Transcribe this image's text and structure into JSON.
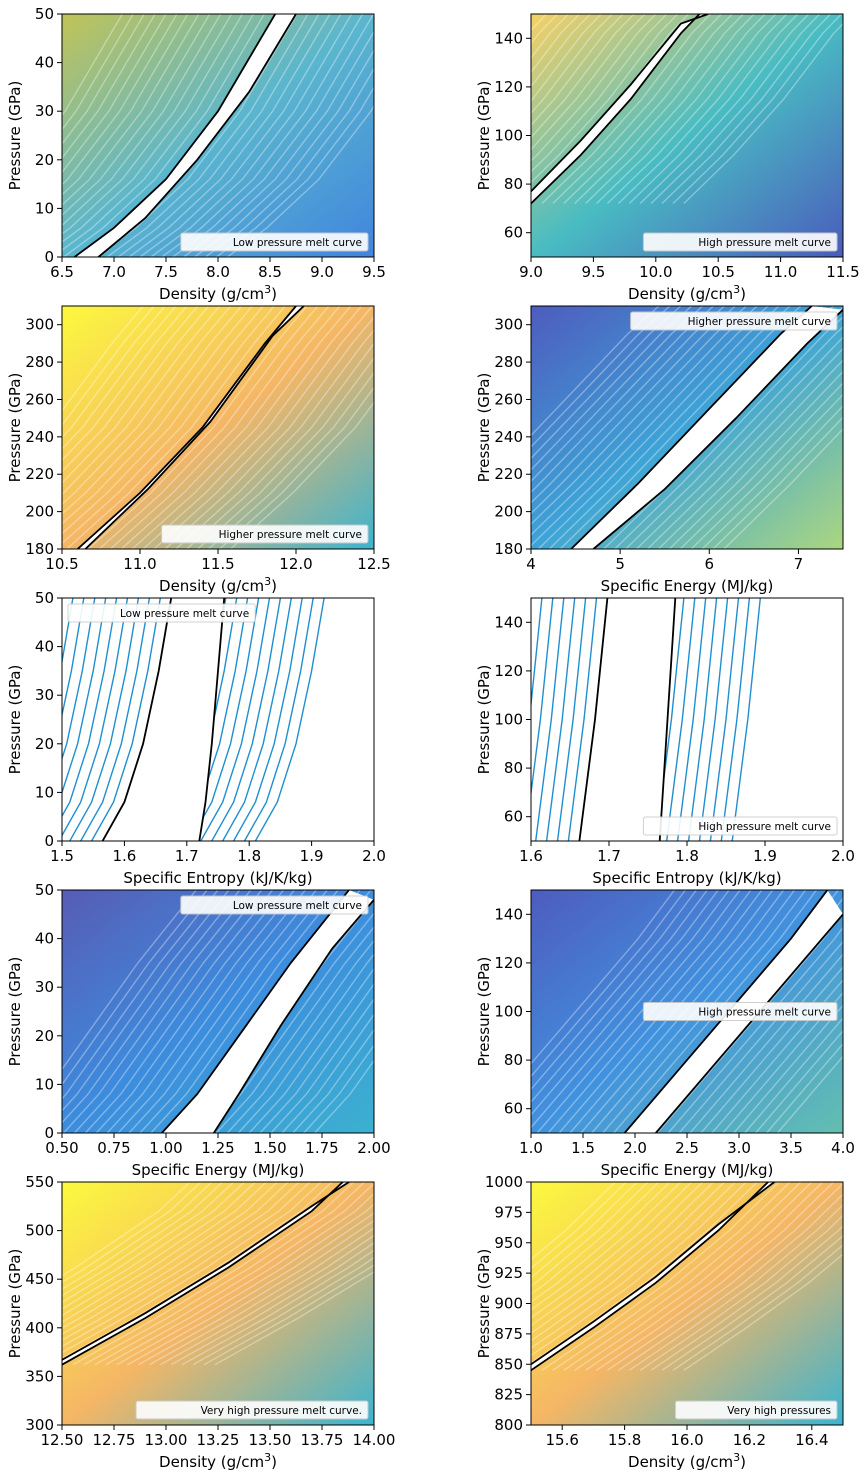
{
  "figure": {
    "panel_count": 10
  },
  "chart_data": [
    {
      "type": "line",
      "xlabel": "Density (g/cm",
      "xlabel_sup": "3",
      "xlabel_end": ")",
      "ylabel": "Pressure (GPa)",
      "xlim": [
        6.5,
        9.5
      ],
      "ylim": [
        0,
        50
      ],
      "xticks": [
        "6.5",
        "7.0",
        "7.5",
        "8.0",
        "8.5",
        "9.0",
        "9.5"
      ],
      "yticks": [
        "0",
        "10",
        "20",
        "30",
        "40",
        "50"
      ],
      "legend": "Low pressure melt curve",
      "legend_loc": "lower right",
      "melt_curves": [
        {
          "x": [
            6.62,
            7.0,
            7.5,
            8.0,
            8.55
          ],
          "y": [
            0,
            6,
            16,
            30,
            50
          ]
        },
        {
          "x": [
            6.85,
            7.3,
            7.8,
            8.3,
            8.75
          ],
          "y": [
            0,
            8,
            20,
            34,
            50
          ]
        }
      ]
    },
    {
      "type": "line",
      "xlabel": "Density (g/cm",
      "xlabel_sup": "3",
      "xlabel_end": ")",
      "ylabel": "Pressure (GPa)",
      "xlim": [
        9.0,
        11.5
      ],
      "ylim": [
        50,
        150
      ],
      "xticks": [
        "9.0",
        "9.5",
        "10.0",
        "10.5",
        "11.0",
        "11.5"
      ],
      "yticks": [
        "60",
        "80",
        "100",
        "120",
        "140"
      ],
      "legend": "High pressure melt curve",
      "legend_loc": "lower right",
      "melt_curves": [
        {
          "x": [
            9.0,
            9.4,
            9.8,
            10.2,
            10.35
          ],
          "y": [
            72,
            92,
            115,
            142,
            150
          ]
        },
        {
          "x": [
            9.0,
            9.4,
            9.8,
            10.2,
            10.42
          ],
          "y": [
            77,
            98,
            121,
            146,
            150
          ]
        }
      ]
    },
    {
      "type": "line",
      "xlabel": "Density (g/cm",
      "xlabel_sup": "3",
      "xlabel_end": ")",
      "ylabel": "Pressure (GPa)",
      "xlim": [
        10.5,
        12.5
      ],
      "ylim": [
        180,
        310
      ],
      "xticks": [
        "10.5",
        "11.0",
        "11.5",
        "12.0",
        "12.5"
      ],
      "yticks": [
        "180",
        "200",
        "220",
        "240",
        "260",
        "280",
        "300"
      ],
      "legend": "Higher pressure melt curve",
      "legend_loc": "lower right",
      "melt_curves": [
        {
          "x": [
            10.6,
            11.0,
            11.4,
            11.8,
            12.0
          ],
          "y": [
            180,
            210,
            245,
            290,
            310
          ]
        },
        {
          "x": [
            10.65,
            11.05,
            11.45,
            11.85,
            12.05
          ],
          "y": [
            180,
            212,
            248,
            294,
            310
          ]
        }
      ]
    },
    {
      "type": "line",
      "xlabel": "Specific Energy (MJ/kg)",
      "ylabel": "Pressure (GPa)",
      "xlim": [
        4.0,
        7.5
      ],
      "ylim": [
        180,
        310
      ],
      "xticks": [
        "4",
        "5",
        "6",
        "7"
      ],
      "yticks": [
        "180",
        "200",
        "220",
        "240",
        "260",
        "280",
        "300"
      ],
      "legend": "Higher pressure melt curve",
      "legend_loc": "upper right",
      "melt_curves": [
        {
          "x": [
            4.45,
            5.2,
            6.0,
            6.8,
            7.15
          ],
          "y": [
            180,
            215,
            255,
            295,
            310
          ]
        },
        {
          "x": [
            4.7,
            5.5,
            6.3,
            7.1,
            7.5
          ],
          "y": [
            180,
            212,
            250,
            290,
            308
          ]
        }
      ]
    },
    {
      "type": "line",
      "xlabel": "Specific Entropy (kJ/K/kg)",
      "ylabel": "Pressure (GPa)",
      "xlim": [
        1.5,
        2.0
      ],
      "ylim": [
        0,
        50
      ],
      "xticks": [
        "1.5",
        "1.6",
        "1.7",
        "1.8",
        "1.9",
        "2.0"
      ],
      "yticks": [
        "0",
        "10",
        "20",
        "30",
        "40",
        "50"
      ],
      "legend": "Low pressure melt curve",
      "legend_loc": "upper left",
      "melt_curves": [
        {
          "x": [
            1.565,
            1.6,
            1.63,
            1.655,
            1.675
          ],
          "y": [
            0,
            8,
            20,
            35,
            50
          ]
        },
        {
          "x": [
            1.72,
            1.73,
            1.74,
            1.75,
            1.76
          ],
          "y": [
            0,
            8,
            20,
            35,
            50
          ]
        }
      ]
    },
    {
      "type": "line",
      "xlabel": "Specific Entropy (kJ/K/kg)",
      "ylabel": "Pressure (GPa)",
      "xlim": [
        1.6,
        2.0
      ],
      "ylim": [
        50,
        150
      ],
      "xticks": [
        "1.6",
        "1.7",
        "1.8",
        "1.9",
        "2.0"
      ],
      "yticks": [
        "60",
        "80",
        "100",
        "120",
        "140"
      ],
      "legend": "High pressure melt curve",
      "legend_loc": "lower right",
      "melt_curves": [
        {
          "x": [
            1.662,
            1.672,
            1.682,
            1.69,
            1.698
          ],
          "y": [
            50,
            75,
            100,
            125,
            150
          ]
        },
        {
          "x": [
            1.765,
            1.77,
            1.775,
            1.78,
            1.785
          ],
          "y": [
            50,
            75,
            100,
            125,
            150
          ]
        }
      ]
    },
    {
      "type": "line",
      "xlabel": "Specific Energy (MJ/kg)",
      "ylabel": "Pressure (GPa)",
      "xlim": [
        0.5,
        2.0
      ],
      "ylim": [
        0,
        50
      ],
      "xticks": [
        "0.50",
        "0.75",
        "1.00",
        "1.25",
        "1.50",
        "1.75",
        "2.00"
      ],
      "yticks": [
        "0",
        "10",
        "20",
        "30",
        "40",
        "50"
      ],
      "legend": "Low pressure melt curve",
      "legend_loc": "upper right",
      "melt_curves": [
        {
          "x": [
            0.98,
            1.15,
            1.35,
            1.6,
            1.88
          ],
          "y": [
            0,
            8,
            20,
            35,
            50
          ]
        },
        {
          "x": [
            1.23,
            1.35,
            1.55,
            1.8,
            2.0
          ],
          "y": [
            0,
            8,
            22,
            38,
            48
          ]
        }
      ]
    },
    {
      "type": "line",
      "xlabel": "Specific Energy (MJ/kg)",
      "ylabel": "Pressure (GPa)",
      "xlim": [
        1.0,
        4.0
      ],
      "ylim": [
        50,
        150
      ],
      "xticks": [
        "1.0",
        "1.5",
        "2.0",
        "2.5",
        "3.0",
        "3.5",
        "4.0"
      ],
      "yticks": [
        "60",
        "80",
        "100",
        "120",
        "140"
      ],
      "legend": "High pressure melt curve",
      "legend_loc": "center right",
      "melt_curves": [
        {
          "x": [
            1.9,
            2.5,
            3.0,
            3.5,
            3.85
          ],
          "y": [
            50,
            80,
            105,
            130,
            150
          ]
        },
        {
          "x": [
            2.2,
            2.8,
            3.3,
            3.8,
            4.0
          ],
          "y": [
            50,
            80,
            105,
            130,
            140
          ]
        }
      ]
    },
    {
      "type": "line",
      "xlabel": "Density (g/cm",
      "xlabel_sup": "3",
      "xlabel_end": ")",
      "ylabel": "Pressure (GPa)",
      "xlim": [
        12.5,
        14.0
      ],
      "ylim": [
        300,
        550
      ],
      "xticks": [
        "12.50",
        "12.75",
        "13.00",
        "13.25",
        "13.50",
        "13.75",
        "14.00"
      ],
      "yticks": [
        "300",
        "350",
        "400",
        "450",
        "500",
        "550"
      ],
      "legend": "Very high pressure melt curve.",
      "legend_loc": "lower right",
      "melt_curves": [
        {
          "x": [
            12.5,
            12.9,
            13.3,
            13.7,
            13.85
          ],
          "y": [
            362,
            410,
            462,
            520,
            550
          ]
        },
        {
          "x": [
            12.5,
            12.9,
            13.3,
            13.7,
            13.88
          ],
          "y": [
            367,
            415,
            467,
            525,
            550
          ]
        }
      ]
    },
    {
      "type": "line",
      "xlabel": "Density (g/cm",
      "xlabel_sup": "3",
      "xlabel_end": ")",
      "ylabel": "Pressure (GPa)",
      "xlim": [
        15.5,
        16.5
      ],
      "ylim": [
        800,
        1000
      ],
      "xticks": [
        "15.6",
        "15.8",
        "16.0",
        "16.2",
        "16.4"
      ],
      "yticks": [
        "800",
        "825",
        "850",
        "875",
        "900",
        "925",
        "950",
        "975",
        "1000"
      ],
      "legend": "Very high pressures",
      "legend_loc": "lower right",
      "melt_curves": [
        {
          "x": [
            15.5,
            15.7,
            15.9,
            16.1,
            16.26
          ],
          "y": [
            845,
            880,
            917,
            960,
            1000
          ]
        },
        {
          "x": [
            15.5,
            15.7,
            15.9,
            16.1,
            16.28
          ],
          "y": [
            850,
            885,
            922,
            965,
            1000
          ]
        }
      ]
    }
  ]
}
